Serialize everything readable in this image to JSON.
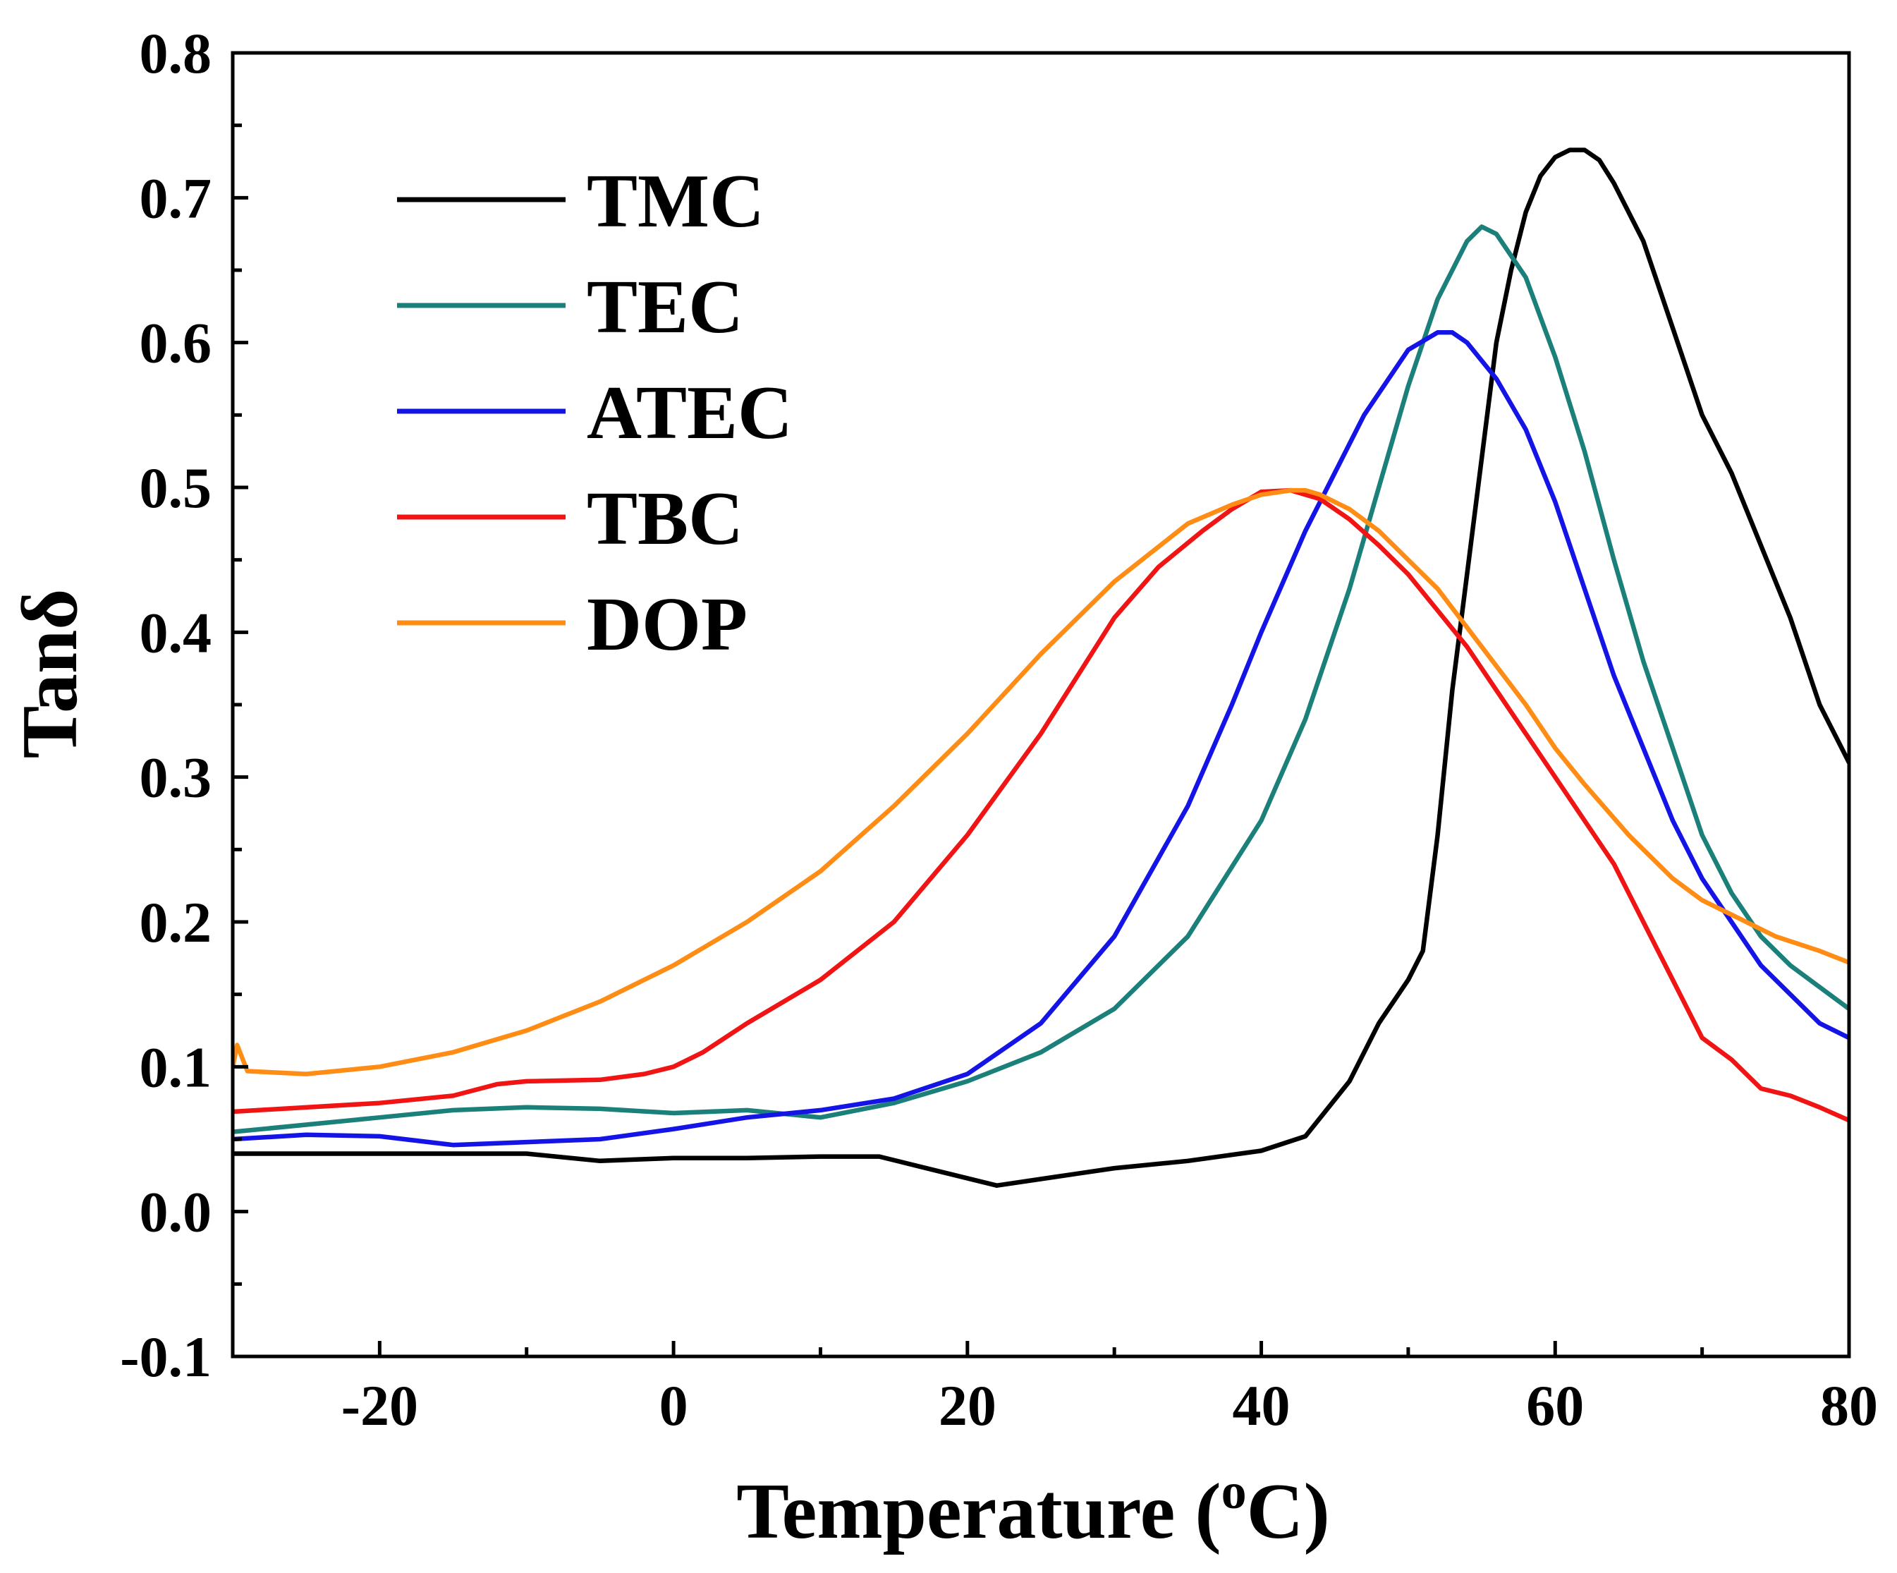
{
  "chart_data": {
    "type": "line",
    "title": "",
    "xlabel": "Temperature (",
    "xlabel_unit_sup": "o",
    "xlabel_unit": "C)",
    "ylabel": "Tanδ",
    "xlim": [
      -30,
      80
    ],
    "ylim": [
      -0.1,
      0.8
    ],
    "xticks": [
      -20,
      0,
      20,
      40,
      60,
      80
    ],
    "xtick_labels": [
      "-20",
      "0",
      "20",
      "40",
      "60",
      "80"
    ],
    "yticks": [
      -0.1,
      0.0,
      0.1,
      0.2,
      0.3,
      0.4,
      0.5,
      0.6,
      0.7,
      0.8
    ],
    "ytick_labels": [
      "-0.1",
      "0.0",
      "0.1",
      "0.2",
      "0.3",
      "0.4",
      "0.5",
      "0.6",
      "0.7",
      "0.8"
    ],
    "legend_position": "top-left",
    "grid": false,
    "series": [
      {
        "name": "TMC",
        "color": "#000000",
        "x": [
          -30,
          -20,
          -10,
          -5,
          0,
          5,
          10,
          14,
          18,
          22,
          26,
          30,
          35,
          40,
          43,
          46,
          48,
          50,
          51,
          52,
          53,
          54,
          55,
          56,
          57,
          58,
          59,
          60,
          61,
          62,
          63,
          64,
          66,
          68,
          70,
          72,
          74,
          76,
          78,
          80
        ],
        "y": [
          0.04,
          0.04,
          0.04,
          0.035,
          0.037,
          0.037,
          0.038,
          0.038,
          0.028,
          0.018,
          0.024,
          0.03,
          0.035,
          0.042,
          0.052,
          0.09,
          0.13,
          0.16,
          0.18,
          0.26,
          0.36,
          0.44,
          0.52,
          0.6,
          0.65,
          0.69,
          0.715,
          0.728,
          0.733,
          0.733,
          0.726,
          0.71,
          0.67,
          0.61,
          0.55,
          0.51,
          0.46,
          0.41,
          0.35,
          0.31
        ]
      },
      {
        "name": "TEC",
        "color": "#1A8079",
        "x": [
          -30,
          -20,
          -15,
          -10,
          -5,
          0,
          5,
          10,
          15,
          20,
          25,
          30,
          35,
          40,
          43,
          46,
          48,
          50,
          52,
          54,
          55,
          56,
          58,
          60,
          62,
          64,
          66,
          68,
          70,
          72,
          74,
          76,
          78,
          80
        ],
        "y": [
          0.055,
          0.065,
          0.07,
          0.072,
          0.071,
          0.068,
          0.07,
          0.065,
          0.075,
          0.09,
          0.11,
          0.14,
          0.19,
          0.27,
          0.34,
          0.43,
          0.5,
          0.57,
          0.63,
          0.67,
          0.68,
          0.675,
          0.645,
          0.59,
          0.525,
          0.45,
          0.38,
          0.32,
          0.26,
          0.22,
          0.19,
          0.17,
          0.155,
          0.14
        ]
      },
      {
        "name": "ATEC",
        "color": "#1414E6",
        "x": [
          -30,
          -25,
          -20,
          -15,
          -10,
          -5,
          0,
          5,
          10,
          15,
          20,
          25,
          30,
          35,
          38,
          40,
          43,
          45,
          47,
          49,
          50,
          52,
          53,
          54,
          56,
          58,
          60,
          62,
          64,
          66,
          68,
          70,
          72,
          74,
          76,
          78,
          80
        ],
        "y": [
          0.05,
          0.053,
          0.052,
          0.046,
          0.048,
          0.05,
          0.057,
          0.065,
          0.07,
          0.078,
          0.095,
          0.13,
          0.19,
          0.28,
          0.35,
          0.4,
          0.47,
          0.51,
          0.55,
          0.58,
          0.595,
          0.607,
          0.607,
          0.6,
          0.575,
          0.54,
          0.49,
          0.43,
          0.37,
          0.32,
          0.27,
          0.23,
          0.2,
          0.17,
          0.15,
          0.13,
          0.12
        ]
      },
      {
        "name": "TBC",
        "color": "#F01414",
        "x": [
          -30,
          -20,
          -15,
          -12,
          -10,
          -5,
          -2,
          0,
          2,
          5,
          10,
          15,
          20,
          25,
          30,
          33,
          36,
          38,
          40,
          42,
          44,
          46,
          48,
          50,
          52,
          54,
          56,
          58,
          60,
          62,
          64,
          66,
          68,
          70,
          72,
          74,
          76,
          78,
          80
        ],
        "y": [
          0.069,
          0.075,
          0.08,
          0.088,
          0.09,
          0.091,
          0.095,
          0.1,
          0.11,
          0.13,
          0.16,
          0.2,
          0.26,
          0.33,
          0.41,
          0.445,
          0.47,
          0.485,
          0.497,
          0.498,
          0.492,
          0.478,
          0.46,
          0.44,
          0.415,
          0.39,
          0.36,
          0.33,
          0.3,
          0.27,
          0.24,
          0.2,
          0.16,
          0.12,
          0.105,
          0.085,
          0.08,
          0.072,
          0.063
        ]
      },
      {
        "name": "DOP",
        "color": "#FF8C14",
        "x": [
          -30,
          -29.7,
          -29,
          -25,
          -20,
          -15,
          -10,
          -5,
          0,
          5,
          10,
          15,
          20,
          25,
          30,
          35,
          38,
          40,
          42,
          43,
          44,
          46,
          48,
          50,
          52,
          55,
          58,
          60,
          62,
          65,
          68,
          70,
          72,
          75,
          78,
          80
        ],
        "y": [
          0.1,
          0.115,
          0.097,
          0.095,
          0.1,
          0.11,
          0.125,
          0.145,
          0.17,
          0.2,
          0.235,
          0.28,
          0.33,
          0.385,
          0.435,
          0.475,
          0.488,
          0.495,
          0.498,
          0.498,
          0.495,
          0.485,
          0.47,
          0.45,
          0.43,
          0.39,
          0.35,
          0.32,
          0.295,
          0.26,
          0.23,
          0.215,
          0.205,
          0.19,
          0.18,
          0.172
        ]
      }
    ]
  }
}
